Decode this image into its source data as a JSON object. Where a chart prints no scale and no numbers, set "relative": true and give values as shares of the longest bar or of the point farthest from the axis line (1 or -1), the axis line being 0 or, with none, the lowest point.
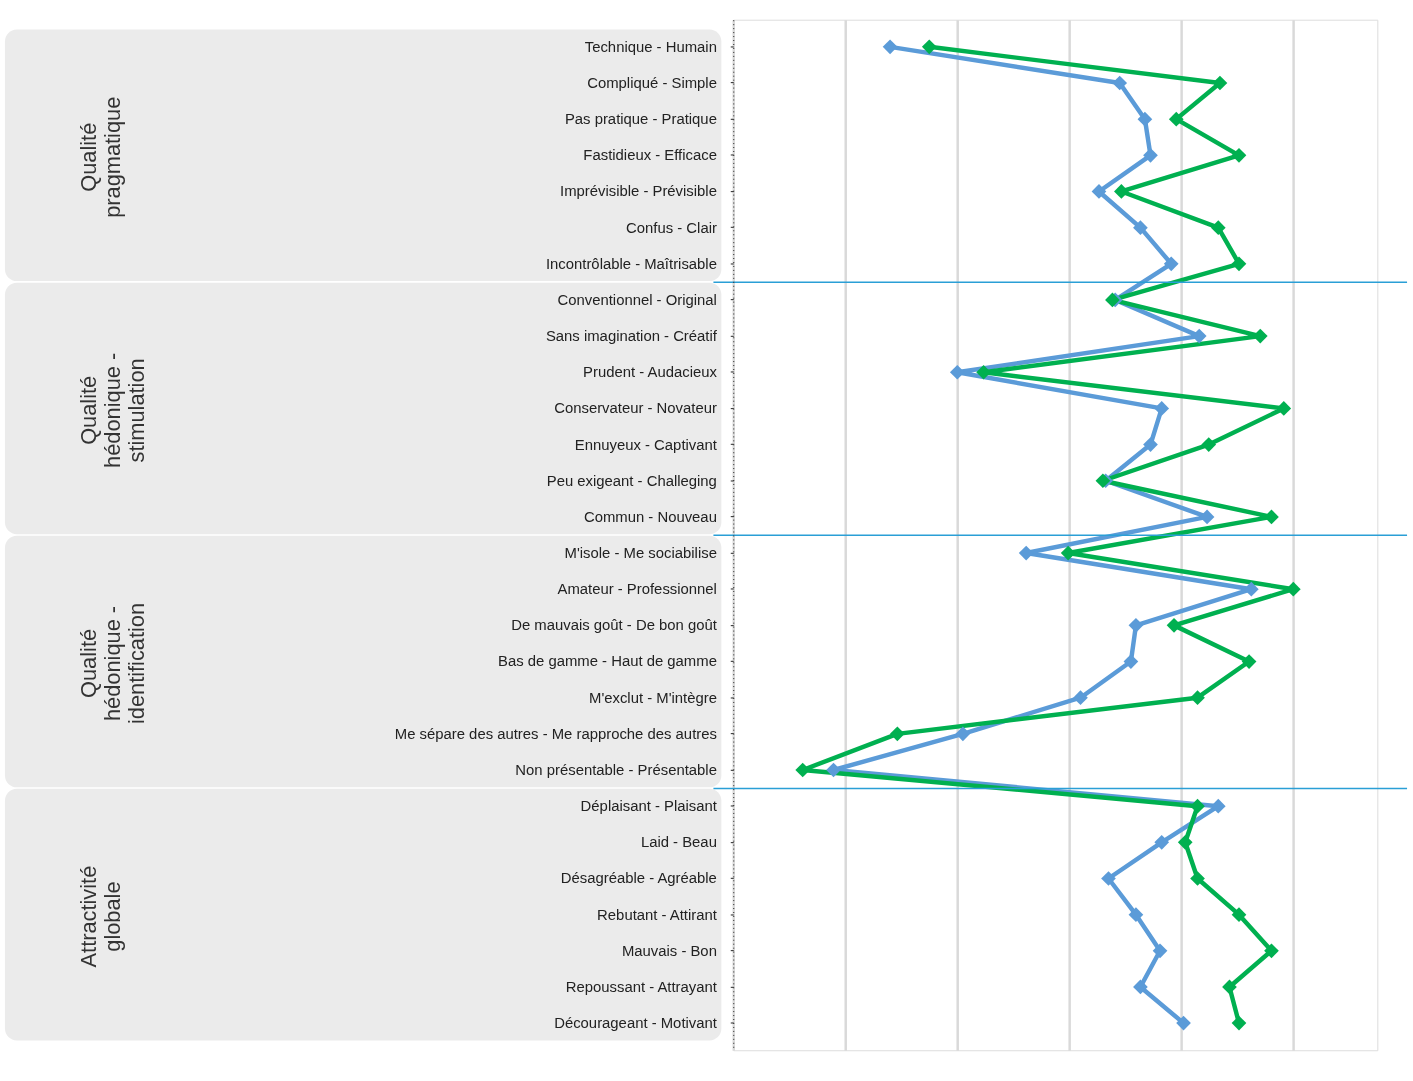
{
  "chart_data": {
    "type": "line",
    "orientation": "horizontal",
    "relative": true,
    "marker": "diamond",
    "line_style": "solid",
    "grid": "x",
    "legend": false,
    "categories": [
      "Technique - Humain",
      "Compliqué - Simple",
      "Pas pratique - Pratique",
      "Fastidieux - Efficace",
      "Imprévisible - Prévisible",
      "Confus - Clair",
      "Incontrôlable - Maîtrisable",
      "Conventionnel - Original",
      "Sans imagination - Créatif",
      "Prudent - Audacieux",
      "Conservateur - Novateur",
      "Ennuyeux - Captivant",
      "Peu exigeant - Challeging",
      "Commun - Nouveau",
      "M'isole - Me sociabilise",
      "Amateur - Professionnel",
      "De mauvais goût - De bon goût",
      "Bas de gamme - Haut de gamme",
      "M'exclut - M'intègre",
      "Me sépare des autres - Me rapproche des autres",
      "Non présentable - Présentable",
      "Déplaisant - Plaisant",
      "Laid - Beau",
      "Désagréable - Agréable",
      "Rebutant - Attirant",
      "Mauvais - Bon",
      "Repoussant - Attrayant",
      "Décourageant - Motivant"
    ],
    "series": [
      {
        "color": "#5b9bd8",
        "values": [
          0.28,
          0.69,
          0.735,
          0.745,
          0.653,
          0.727,
          0.782,
          0.682,
          0.832,
          0.4,
          0.765,
          0.745,
          0.665,
          0.846,
          0.523,
          0.925,
          0.719,
          0.71,
          0.62,
          0.41,
          0.179,
          0.866,
          0.765,
          0.67,
          0.719,
          0.762,
          0.727,
          0.804
        ]
      },
      {
        "color": "#00b050",
        "values": [
          0.35,
          0.869,
          0.791,
          0.903,
          0.693,
          0.866,
          0.903,
          0.677,
          0.941,
          0.447,
          0.983,
          0.849,
          0.66,
          0.961,
          0.598,
          1,
          0.787,
          0.921,
          0.829,
          0.293,
          0.124,
          0.829,
          0.807,
          0.829,
          0.903,
          0.961,
          0.886,
          0.903
        ]
      }
    ],
    "annotations": [
      "Qualité pragmatique",
      "Qualité hédonique - stimulation",
      "Qualité hédonique - identification",
      "Attractivité globale"
    ]
  }
}
